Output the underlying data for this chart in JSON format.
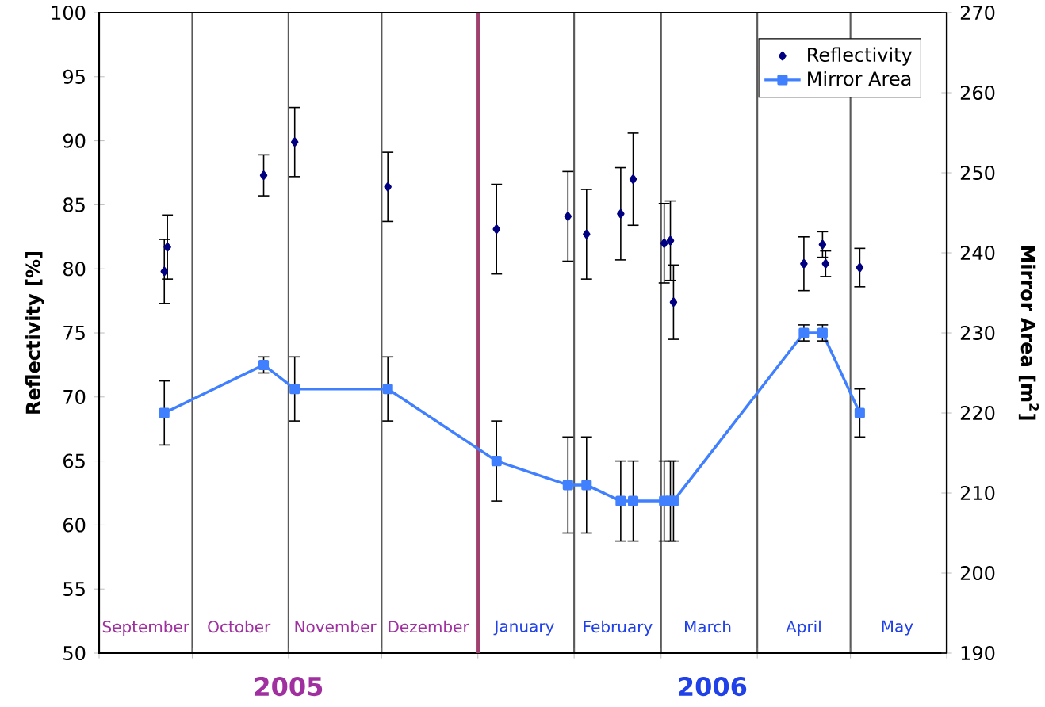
{
  "chart_data": {
    "type": "line",
    "ylabel": "Reflectivity [%]",
    "y2label": "Mirror Area [m$^{2}$]",
    "xlim": [
      "2005-09-01",
      "2006-06-01"
    ],
    "xticks": [
      {
        "value": "2005-09-01",
        "label": null
      },
      {
        "value": "2005-10-01",
        "label": null
      },
      {
        "value": "2005-11-01",
        "label": null
      },
      {
        "value": "2005-12-01",
        "label": null
      },
      {
        "value": "2006-01-01",
        "label": null
      },
      {
        "value": "2006-02-01",
        "label": null
      },
      {
        "value": "2006-03-01",
        "label": null
      },
      {
        "value": "2006-04-01",
        "label": null
      },
      {
        "value": "2006-05-01",
        "label": null
      },
      {
        "value": "2006-06-01",
        "label": null
      },
      {
        "value": "2005-09-16",
        "label": "September"
      },
      {
        "value": "2005-10-16",
        "label": "October"
      },
      {
        "value": "2005-11-16",
        "label": "November"
      },
      {
        "value": "2005-12-16",
        "label": "Dezember"
      },
      {
        "value": "2006-01-16",
        "label": "January"
      },
      {
        "value": "2006-02-15",
        "label": "February"
      },
      {
        "value": "2006-03-16",
        "label": "March"
      },
      {
        "value": "2006-04-16",
        "label": "April"
      },
      {
        "value": "2006-05-16",
        "label": "May"
      }
    ],
    "ylim": [
      50,
      100
    ],
    "yticks": [
      50,
      55,
      60,
      65,
      70,
      75,
      80,
      85,
      90,
      95,
      100
    ],
    "y2lim": [
      190,
      270
    ],
    "y2ticks": [
      190,
      200,
      210,
      220,
      230,
      240,
      250,
      260,
      270
    ],
    "grid": "x",
    "legend": "top right",
    "ref_lines": [
      {
        "axis": "x",
        "value": "2006-01-01",
        "color": "#a0406e"
      }
    ],
    "series": [
      {
        "name": "Reflectivity",
        "type": "scatter",
        "marker": "diamond",
        "color": "#000080",
        "x": [
          "2005-09-22",
          "2005-09-23",
          "2005-10-24",
          "2005-11-03",
          "2005-12-03",
          "2006-01-07",
          "2006-01-30",
          "2006-02-05",
          "2006-02-16",
          "2006-02-20",
          "2006-03-02",
          "2006-03-04",
          "2006-03-05",
          "2006-04-16",
          "2006-04-22",
          "2006-04-23",
          "2006-05-04"
        ],
        "values": [
          79.8,
          81.7,
          87.3,
          89.9,
          86.4,
          83.1,
          84.1,
          82.7,
          84.3,
          87.0,
          82.0,
          82.2,
          77.4,
          80.4,
          81.9,
          80.4,
          80.1
        ],
        "errors": [
          2.5,
          2.5,
          1.6,
          2.7,
          2.7,
          3.5,
          3.5,
          3.5,
          3.6,
          3.6,
          3.1,
          3.1,
          2.9,
          2.1,
          1,
          1,
          1.5
        ]
      },
      {
        "name": "Mirror Area",
        "marker": "square",
        "axis": "y2",
        "color": "#4080ff",
        "x": [
          "2005-09-22",
          "2005-10-24",
          "2005-11-03",
          "2005-12-03",
          "2006-01-07",
          "2006-01-30",
          "2006-02-05",
          "2006-02-16",
          "2006-02-20",
          "2006-03-02",
          "2006-03-04",
          "2006-03-05",
          "2006-04-16",
          "2006-04-22",
          "2006-05-04"
        ],
        "values": [
          220,
          226,
          223,
          223,
          214,
          211,
          211,
          209,
          209,
          209,
          209,
          209,
          230,
          230,
          220
        ],
        "errors": [
          4,
          1,
          4,
          4,
          5,
          6,
          6,
          5,
          5,
          5,
          5,
          5,
          1,
          1,
          3
        ]
      }
    ],
    "annotations": [
      "2005",
      "2006"
    ]
  }
}
